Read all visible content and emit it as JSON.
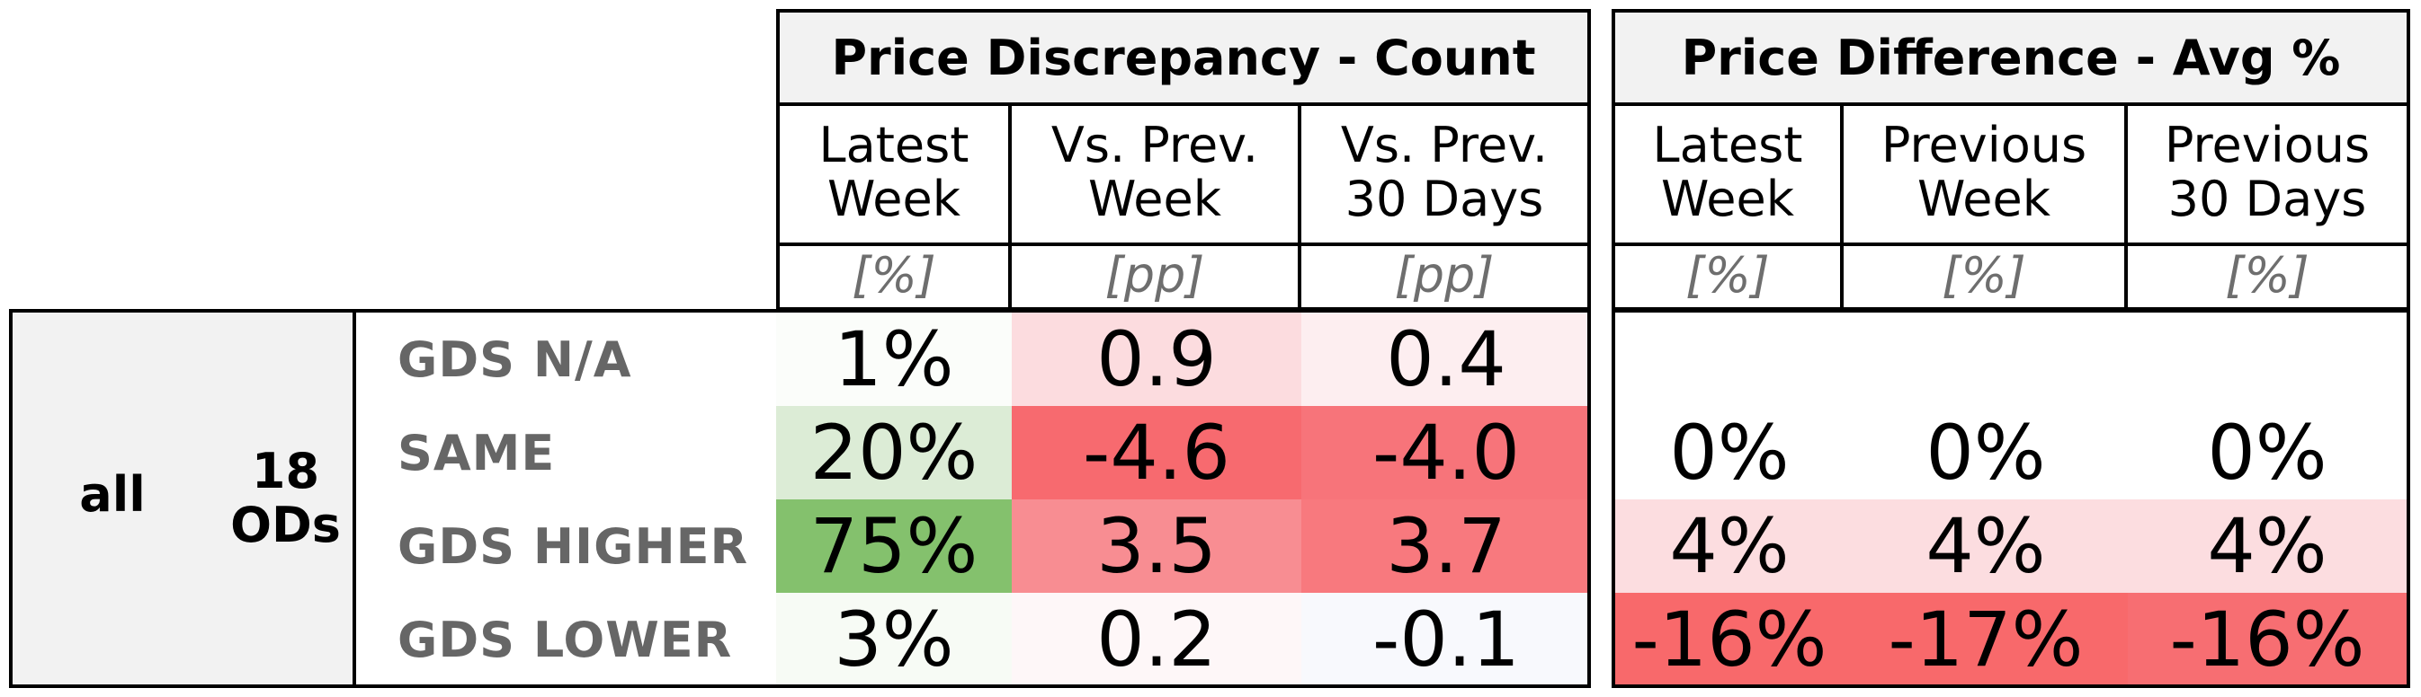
{
  "chart_data": {
    "type": "table",
    "groups": [
      {
        "title": "Price Discrepancy - Count",
        "columns": [
          {
            "label": "Latest\nWeek",
            "unit": "[%]"
          },
          {
            "label": "Vs. Prev.\nWeek",
            "unit": "[pp]"
          },
          {
            "label": "Vs. Prev.\n30 Days",
            "unit": "[pp]"
          }
        ]
      },
      {
        "title": "Price Difference - Avg %",
        "columns": [
          {
            "label": "Latest\nWeek",
            "unit": "[%]"
          },
          {
            "label": "Previous\nWeek",
            "unit": "[%]"
          },
          {
            "label": "Previous\n30 Days",
            "unit": "[%]"
          }
        ]
      }
    ],
    "row_header": {
      "scope": "all",
      "od_count": "18\nODs"
    },
    "rows": [
      {
        "label": "GDS N/A",
        "count": [
          "1%",
          "0.9",
          "0.4"
        ],
        "avg": [
          "",
          "",
          ""
        ],
        "count_colors": [
          "#fbfdfa",
          "#fcdcdf",
          "#fdeef0"
        ],
        "avg_colors": [
          "#ffffff",
          "#ffffff",
          "#ffffff"
        ]
      },
      {
        "label": "SAME",
        "count": [
          "20%",
          "-4.6",
          "-4.0"
        ],
        "avg": [
          "0%",
          "0%",
          "0%"
        ],
        "count_colors": [
          "#dcecd6",
          "#f76a6f",
          "#f7747a"
        ],
        "avg_colors": [
          "#ffffff",
          "#ffffff",
          "#ffffff"
        ]
      },
      {
        "label": "GDS HIGHER",
        "count": [
          "75%",
          "3.5",
          "3.7"
        ],
        "avg": [
          "4%",
          "4%",
          "4%"
        ],
        "count_colors": [
          "#84c16d",
          "#f88d92",
          "#f8797e"
        ],
        "avg_colors": [
          "#fcdde0",
          "#fcdde0",
          "#fcdde0"
        ]
      },
      {
        "label": "GDS LOWER",
        "count": [
          "3%",
          "0.2",
          "-0.1"
        ],
        "avg": [
          "-16%",
          "-17%",
          "-16%"
        ],
        "count_colors": [
          "#f7fbf5",
          "#fef7f8",
          "#f8f9fd"
        ],
        "avg_colors": [
          "#f8696b",
          "#f8696b",
          "#f76e72"
        ]
      }
    ]
  }
}
